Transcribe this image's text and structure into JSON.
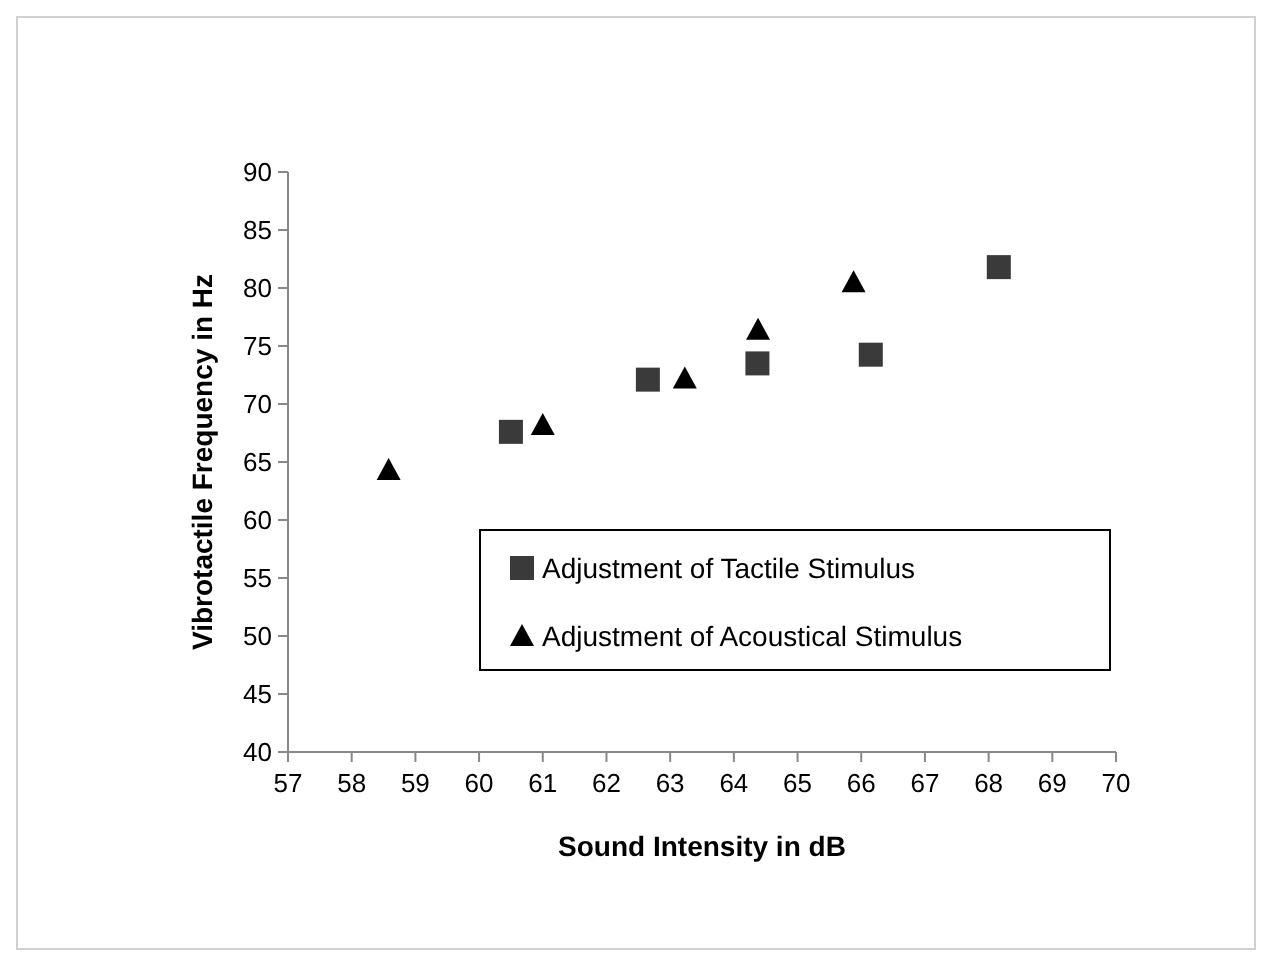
{
  "chart_data": {
    "type": "scatter",
    "xlabel": "Sound Intensity in dB",
    "ylabel": "Vibrotactile Frequency in Hz",
    "xlim": [
      57,
      70
    ],
    "xticks": [
      57,
      58,
      59,
      60,
      61,
      62,
      63,
      64,
      65,
      66,
      67,
      68,
      69,
      70
    ],
    "ylim": [
      40,
      90
    ],
    "yticks": [
      40,
      45,
      50,
      55,
      60,
      65,
      70,
      75,
      80,
      85,
      90
    ],
    "grid": false,
    "legend": "bottom right",
    "series": [
      {
        "name": "Adjustment of Tactile Stimulus",
        "color": "#3a3a3a",
        "marker": "square",
        "x": [
          60.5,
          62.65,
          64.37,
          66.15,
          68.16
        ],
        "values": [
          67.6,
          72.1,
          73.5,
          74.25,
          81.8
        ]
      },
      {
        "name": "Adjustment of Acoustical Stimulus",
        "color": "#000000",
        "marker": "triangle",
        "x": [
          58.58,
          61.0,
          63.23,
          64.38,
          65.88
        ],
        "values": [
          64.3,
          68.2,
          72.2,
          76.4,
          80.5
        ]
      }
    ]
  }
}
